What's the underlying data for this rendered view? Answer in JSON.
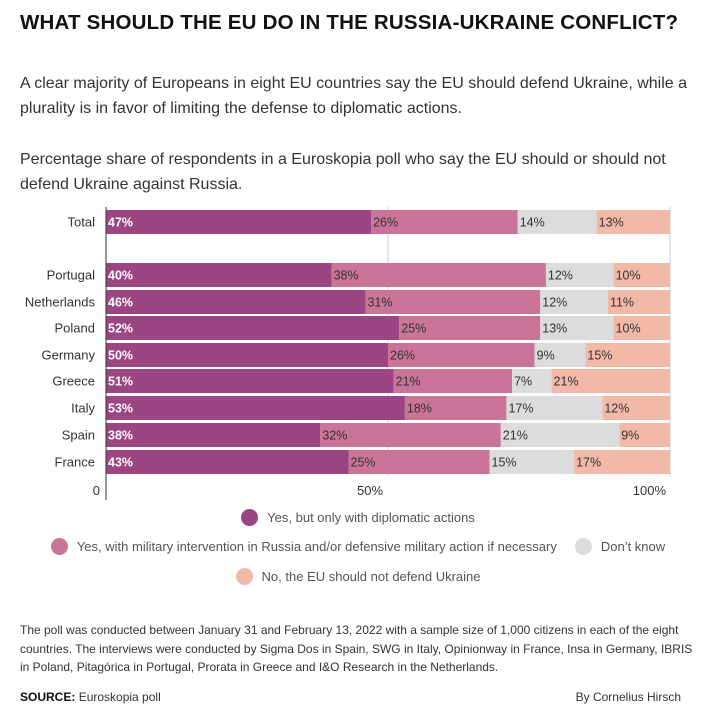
{
  "title": "WHAT SHOULD THE EU DO IN THE RUSSIA-UKRAINE CONFLICT?",
  "subtitle": "A clear majority of Europeans in eight EU countries say the EU should defend Ukraine, while a plurality is in favor of limiting the defense to diplomatic actions.",
  "description": "Percentage share of respondents in a Euroskopia poll who say the EU should or should not defend Ukraine against Russia.",
  "chart_data": {
    "type": "bar",
    "orientation": "horizontal",
    "stacked": true,
    "categories": [
      "Total",
      "Portugal",
      "Netherlands",
      "Poland",
      "Germany",
      "Greece",
      "Italy",
      "Spain",
      "France"
    ],
    "series": [
      {
        "name": "Yes, but only with diplomatic actions",
        "color": "#9b4582",
        "label_color": "#ffffff",
        "values": [
          47,
          40,
          46,
          52,
          50,
          51,
          53,
          38,
          43
        ]
      },
      {
        "name": "Yes, with military intervention in Russia and/or defensive military action if necessary",
        "color": "#c97498",
        "label_color": "#333333",
        "values": [
          26,
          38,
          31,
          25,
          26,
          21,
          18,
          32,
          25
        ]
      },
      {
        "name": "Don't know",
        "color": "#dcdcdc",
        "label_color": "#333333",
        "values": [
          14,
          12,
          12,
          13,
          9,
          7,
          17,
          21,
          15
        ]
      },
      {
        "name": "No, the EU should not defend Ukraine",
        "color": "#f3b9a8",
        "label_color": "#333333",
        "values": [
          13,
          10,
          11,
          10,
          15,
          21,
          12,
          9,
          17
        ]
      }
    ],
    "xlim": [
      0,
      100
    ],
    "x_ticks": [
      "0",
      "50%",
      "100%"
    ],
    "gridlines": true,
    "legend_position": "bottom"
  },
  "legend": {
    "diplomatic": "Yes, but only with diplomatic actions",
    "military": "Yes, with military intervention in Russia and/or defensive military action if necessary",
    "dont_know": "Don’t know",
    "no": "No, the EU should not defend Ukraine"
  },
  "note": "The poll was conducted between January 31 and February 13, 2022 with a sample size of 1,000 citizens in each of the eight countries. The interviews were conducted by Sigma Dos in Spain, SWG in Italy, Opinionway in France, Insa in Germany, IBRIS in Poland, Pitagórica in Portugal, Prorata in Greece and I&O Research in the Netherlands.",
  "source_label": "SOURCE:",
  "source_value": "Euroskopia poll",
  "byline": "By Cornelius Hirsch"
}
